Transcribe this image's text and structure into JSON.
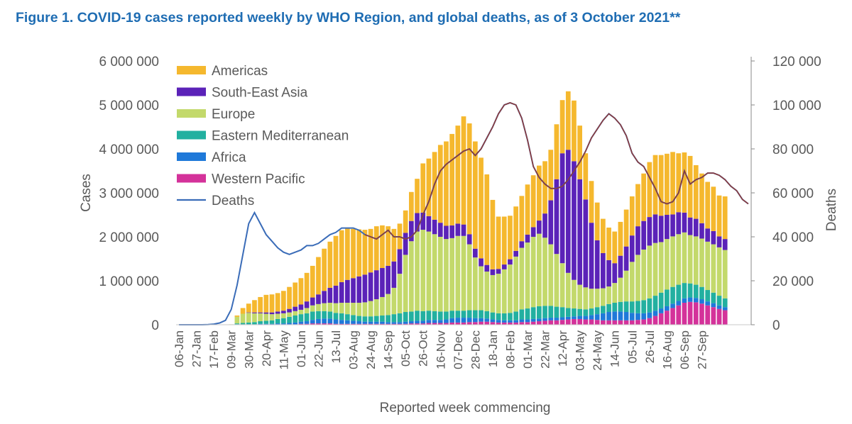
{
  "chart_data": {
    "type": "bar",
    "title": "Figure 1. COVID-19 cases reported weekly by WHO Region, and global deaths, as of 3 October 2021**",
    "xlabel": "Reported week commencing",
    "ylabel": "Cases",
    "y2label": "Deaths",
    "ylim": [
      0,
      6000000
    ],
    "y2lim": [
      0,
      120000
    ],
    "yticks": [
      "0",
      "1 000 000",
      "2 000 000",
      "3 000 000",
      "4 000 000",
      "5 000 000",
      "6 000 000"
    ],
    "y2ticks": [
      "0",
      "20 000",
      "40 000",
      "60 000",
      "80 000",
      "100 000",
      "120 000"
    ],
    "xticks": [
      "06-Jan",
      "27-Jan",
      "17-Feb",
      "09-Mar",
      "30-Mar",
      "20-Apr",
      "11-May",
      "01-Jun",
      "22-Jun",
      "13-Jul",
      "03-Aug",
      "24-Aug",
      "14-Sep",
      "05-Oct",
      "26-Oct",
      "16-Nov",
      "07-Dec",
      "28-Dec",
      "18-Jan",
      "08-Feb",
      "01-Mar",
      "22-Mar",
      "12-Apr",
      "03-May",
      "24-May",
      "14-Jun",
      "05-Jul",
      "26-Jul",
      "16-Aug",
      "06-Sep",
      "27-Sep"
    ],
    "legend": {
      "position": "top-left",
      "entries": [
        "Americas",
        "South-East Asia",
        "Europe",
        "Eastern Mediterranean",
        "Africa",
        "Western Pacific",
        "Deaths"
      ]
    },
    "colors": {
      "Americas": "#f5b82e",
      "South-East Asia": "#5b22b8",
      "Europe": "#c3d96b",
      "Eastern Mediterranean": "#22b0a0",
      "Africa": "#1f79d9",
      "Western Pacific": "#d4329a",
      "Deaths": "#3a6cb8",
      "DeathsLater": "#8c3a3a"
    },
    "series": [
      {
        "name": "Western Pacific",
        "values": [
          0,
          0,
          0,
          0,
          0,
          0,
          0,
          0,
          0,
          0,
          10000,
          10000,
          10000,
          10000,
          10000,
          10000,
          10000,
          10000,
          10000,
          10000,
          10000,
          20000,
          20000,
          30000,
          30000,
          30000,
          30000,
          20000,
          20000,
          20000,
          20000,
          20000,
          20000,
          20000,
          20000,
          20000,
          20000,
          20000,
          20000,
          20000,
          30000,
          30000,
          30000,
          40000,
          40000,
          40000,
          40000,
          50000,
          50000,
          50000,
          60000,
          60000,
          70000,
          70000,
          60000,
          50000,
          50000,
          50000,
          50000,
          60000,
          60000,
          70000,
          80000,
          90000,
          100000,
          100000,
          110000,
          120000,
          130000,
          130000,
          120000,
          120000,
          110000,
          100000,
          100000,
          100000,
          100000,
          100000,
          100000,
          110000,
          120000,
          150000,
          200000,
          260000,
          320000,
          380000,
          440000,
          500000,
          520000,
          510000,
          480000,
          440000,
          400000,
          360000,
          330000
        ]
      },
      {
        "name": "Africa",
        "values": [
          0,
          0,
          0,
          0,
          0,
          0,
          0,
          0,
          0,
          0,
          0,
          0,
          0,
          0,
          10000,
          10000,
          10000,
          20000,
          20000,
          30000,
          40000,
          50000,
          60000,
          80000,
          100000,
          110000,
          110000,
          100000,
          90000,
          80000,
          70000,
          60000,
          50000,
          50000,
          50000,
          50000,
          40000,
          40000,
          40000,
          50000,
          50000,
          60000,
          60000,
          70000,
          70000,
          70000,
          80000,
          100000,
          110000,
          110000,
          100000,
          90000,
          80000,
          70000,
          60000,
          60000,
          50000,
          50000,
          50000,
          60000,
          60000,
          60000,
          60000,
          60000,
          60000,
          60000,
          60000,
          60000,
          60000,
          70000,
          80000,
          100000,
          130000,
          160000,
          190000,
          200000,
          200000,
          190000,
          170000,
          150000,
          140000,
          130000,
          120000,
          110000,
          100000,
          100000,
          100000,
          100000,
          100000,
          100000,
          100000,
          90000,
          90000,
          80000,
          70000
        ]
      },
      {
        "name": "Eastern Mediterranean",
        "values": [
          0,
          0,
          0,
          0,
          0,
          0,
          0,
          0,
          0,
          0,
          20000,
          30000,
          40000,
          50000,
          60000,
          70000,
          80000,
          100000,
          120000,
          140000,
          160000,
          170000,
          180000,
          190000,
          180000,
          170000,
          160000,
          150000,
          150000,
          140000,
          130000,
          120000,
          120000,
          120000,
          130000,
          140000,
          160000,
          180000,
          200000,
          220000,
          220000,
          230000,
          220000,
          210000,
          200000,
          190000,
          180000,
          170000,
          160000,
          160000,
          170000,
          180000,
          180000,
          170000,
          160000,
          150000,
          160000,
          170000,
          200000,
          230000,
          250000,
          270000,
          280000,
          280000,
          270000,
          250000,
          230000,
          200000,
          180000,
          160000,
          150000,
          150000,
          160000,
          170000,
          180000,
          200000,
          220000,
          240000,
          260000,
          280000,
          300000,
          320000,
          340000,
          360000,
          380000,
          380000,
          370000,
          350000,
          320000,
          300000,
          280000,
          260000,
          240000,
          220000,
          200000
        ]
      },
      {
        "name": "Europe",
        "values": [
          0,
          0,
          0,
          0,
          0,
          0,
          0,
          0,
          0,
          10000,
          150000,
          210000,
          220000,
          200000,
          180000,
          160000,
          140000,
          120000,
          110000,
          100000,
          100000,
          100000,
          120000,
          140000,
          160000,
          180000,
          200000,
          220000,
          240000,
          260000,
          280000,
          300000,
          320000,
          350000,
          380000,
          420000,
          480000,
          600000,
          900000,
          1300000,
          1600000,
          1800000,
          1850000,
          1800000,
          1750000,
          1700000,
          1650000,
          1650000,
          1700000,
          1700000,
          1500000,
          1200000,
          1000000,
          900000,
          850000,
          900000,
          1000000,
          1100000,
          1250000,
          1400000,
          1500000,
          1600000,
          1650000,
          1550000,
          1400000,
          1200000,
          1000000,
          800000,
          650000,
          550000,
          500000,
          450000,
          420000,
          400000,
          400000,
          450000,
          550000,
          700000,
          900000,
          1050000,
          1150000,
          1200000,
          1200000,
          1150000,
          1150000,
          1150000,
          1150000,
          1150000,
          1100000,
          1100000,
          1100000,
          1100000,
          1100000,
          1100000,
          1100000
        ]
      },
      {
        "name": "South-East Asia",
        "values": [
          0,
          0,
          0,
          0,
          0,
          0,
          0,
          0,
          0,
          0,
          0,
          0,
          10000,
          20000,
          20000,
          30000,
          40000,
          50000,
          60000,
          80000,
          100000,
          120000,
          150000,
          180000,
          220000,
          280000,
          340000,
          400000,
          470000,
          520000,
          560000,
          600000,
          630000,
          650000,
          660000,
          660000,
          640000,
          600000,
          560000,
          500000,
          460000,
          420000,
          390000,
          350000,
          330000,
          320000,
          300000,
          290000,
          280000,
          260000,
          230000,
          200000,
          180000,
          150000,
          130000,
          110000,
          110000,
          120000,
          130000,
          150000,
          180000,
          220000,
          300000,
          550000,
          1000000,
          1700000,
          2500000,
          2800000,
          2700000,
          2400000,
          2000000,
          1500000,
          1100000,
          800000,
          600000,
          450000,
          500000,
          550000,
          600000,
          650000,
          650000,
          650000,
          650000,
          600000,
          550000,
          500000,
          500000,
          450000,
          400000,
          400000,
          350000,
          300000,
          300000,
          250000,
          250000
        ]
      },
      {
        "name": "Americas",
        "values": [
          0,
          0,
          0,
          0,
          0,
          0,
          0,
          0,
          0,
          0,
          30000,
          130000,
          200000,
          280000,
          350000,
          400000,
          410000,
          420000,
          450000,
          500000,
          550000,
          600000,
          650000,
          720000,
          850000,
          960000,
          1050000,
          1130000,
          1180000,
          1190000,
          1120000,
          1070000,
          1020000,
          990000,
          1000000,
          970000,
          900000,
          740000,
          580000,
          510000,
          660000,
          780000,
          1120000,
          1310000,
          1540000,
          1770000,
          1920000,
          2080000,
          2230000,
          2460000,
          2520000,
          2440000,
          2290000,
          2060000,
          1580000,
          1190000,
          1090000,
          990000,
          1010000,
          1030000,
          1140000,
          1180000,
          1250000,
          1190000,
          1150000,
          1250000,
          1210000,
          1330000,
          1380000,
          1220000,
          1050000,
          950000,
          860000,
          780000,
          740000,
          720000,
          770000,
          840000,
          890000,
          960000,
          1080000,
          1250000,
          1350000,
          1380000,
          1390000,
          1420000,
          1340000,
          1370000,
          1400000,
          1220000,
          1130000,
          1060000,
          1010000,
          930000,
          970000
        ]
      }
    ],
    "deaths": [
      0,
      0,
      0,
      0,
      0,
      100,
      300,
      800,
      2000,
      7000,
      18000,
      32000,
      46000,
      51000,
      46000,
      41000,
      38000,
      35000,
      33000,
      32000,
      33000,
      34000,
      36000,
      36000,
      37000,
      39000,
      41000,
      42000,
      44000,
      44000,
      44000,
      43000,
      41000,
      40000,
      39000,
      41000,
      43000,
      40000,
      40000,
      39000,
      40000,
      43000,
      50000,
      56000,
      64000,
      70000,
      73000,
      75000,
      77000,
      79000,
      80000,
      77000,
      80000,
      85000,
      90000,
      96000,
      100000,
      101000,
      100000,
      94000,
      84000,
      72000,
      67000,
      64000,
      62000,
      62000,
      63000,
      66000,
      70000,
      74000,
      79000,
      85000,
      89000,
      93000,
      96000,
      94000,
      91000,
      86000,
      78000,
      74000,
      72000,
      67000,
      62000,
      56000,
      55000,
      56000,
      60000,
      70000,
      64000,
      66000,
      67000,
      69000,
      69000,
      68000,
      66000,
      63000,
      61000,
      57000,
      55000
    ]
  }
}
